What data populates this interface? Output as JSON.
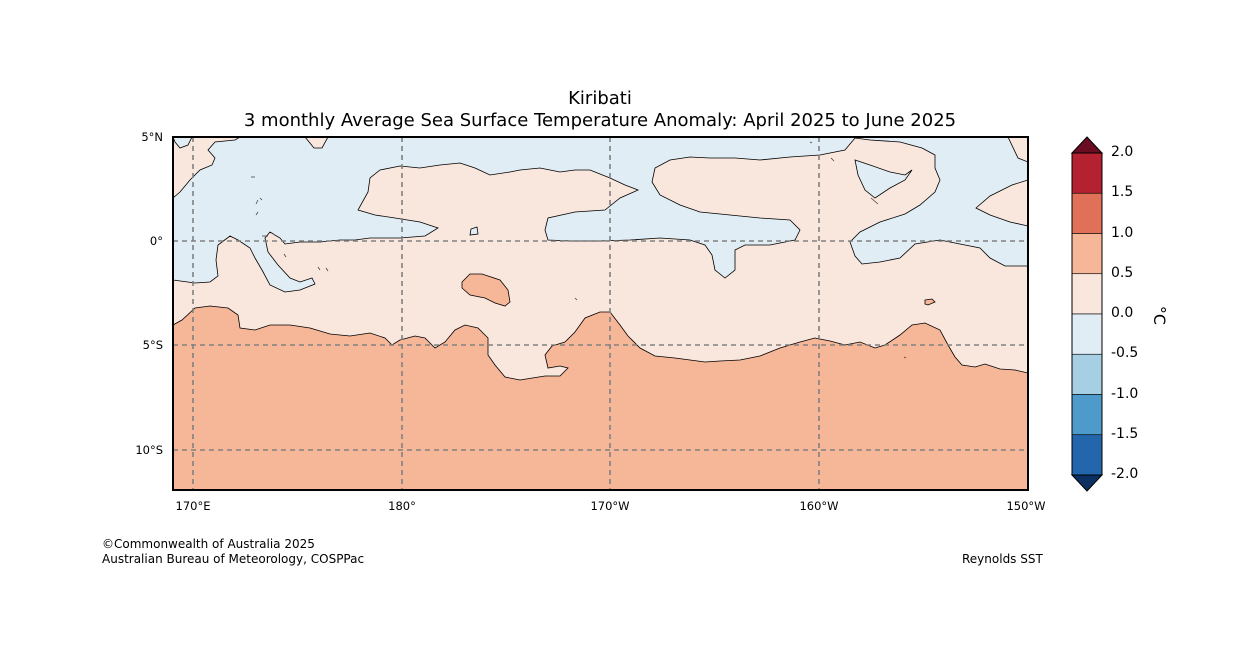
{
  "title": "Kiribati",
  "subtitle": "3 monthly Average Sea Surface Temperature Anomaly: April 2025 to June 2025",
  "map": {
    "lat_labels": [
      "5°N",
      "0°",
      "5°S",
      "10°S"
    ],
    "lon_labels": [
      "170°E",
      "180°",
      "170°W",
      "160°W",
      "150°W"
    ],
    "colors": {
      "positive_0_0.5": "#f9e6dd",
      "positive_0.5_1.0": "#f6b698",
      "negative_0_-0.5": "#e1edf4",
      "gridline": "#808080"
    }
  },
  "colorbar": {
    "unit": "°C",
    "tick_labels": [
      "2.0",
      "1.5",
      "1.0",
      "0.5",
      "0.0",
      "-0.5",
      "-1.0",
      "-1.5",
      "-2.0"
    ],
    "bins": [
      {
        "range": "1.5 to 2.0",
        "color": "#b42131"
      },
      {
        "range": "1.0 to 1.5",
        "color": "#e07058"
      },
      {
        "range": "0.5 to 1.0",
        "color": "#f6b698"
      },
      {
        "range": "0.0 to 0.5",
        "color": "#f9e6dd"
      },
      {
        "range": "-0.5 to 0.0",
        "color": "#e1edf4"
      },
      {
        "range": "-1.0 to -0.5",
        "color": "#a6cfe4"
      },
      {
        "range": "-1.5 to -1.0",
        "color": "#4e9bcb"
      },
      {
        "range": "-2.0 to -1.5",
        "color": "#2466ac"
      }
    ],
    "over_color": "#6a0d22",
    "under_color": "#0c3062"
  },
  "credits": {
    "copyright": "©Commonwealth of Australia 2025",
    "agency": "Australian Bureau of Meteorology, COSPPac",
    "source": "Reynolds SST"
  }
}
